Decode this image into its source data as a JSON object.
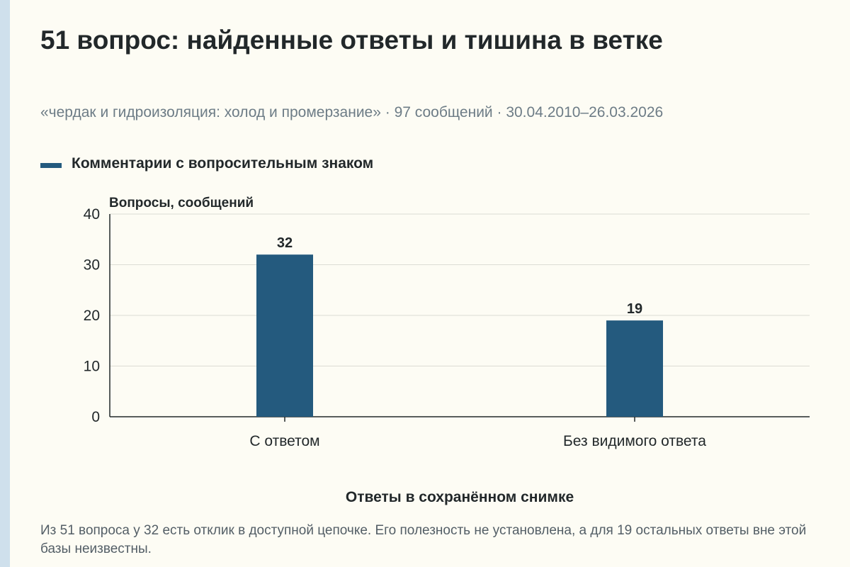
{
  "title": "51 вопрос: найденные ответы и тишина в ветке",
  "subtitle": "«чердак и гидроизоляция: холод и промерзание» · 97 сообщений · 30.04.2010–26.03.2026",
  "footer_note": "Из 51 вопроса у 32 есть отклик в доступной цепочке. Его полезность не установлена, а для 19 остальных ответы вне этой базы неизвестны.",
  "colors": {
    "bar": "#245a7e",
    "background": "#fdfcf4",
    "grid": "#dcdcd4",
    "stripe": "#cfe0ec"
  },
  "chart_data": {
    "type": "bar",
    "categories": [
      "С ответом",
      "Без видимого ответа"
    ],
    "series": [
      {
        "name": "Комментарии с вопросительным знаком",
        "values": [
          32,
          19
        ]
      }
    ],
    "data_labels": [
      "32",
      "19"
    ],
    "xlabel": "Ответы в сохранённом снимке",
    "ylabel": "Вопросы, сообщений",
    "ylim": [
      0,
      40
    ],
    "yticks": [
      0,
      10,
      20,
      30,
      40
    ],
    "grid": true,
    "legend_position": "top-left"
  }
}
